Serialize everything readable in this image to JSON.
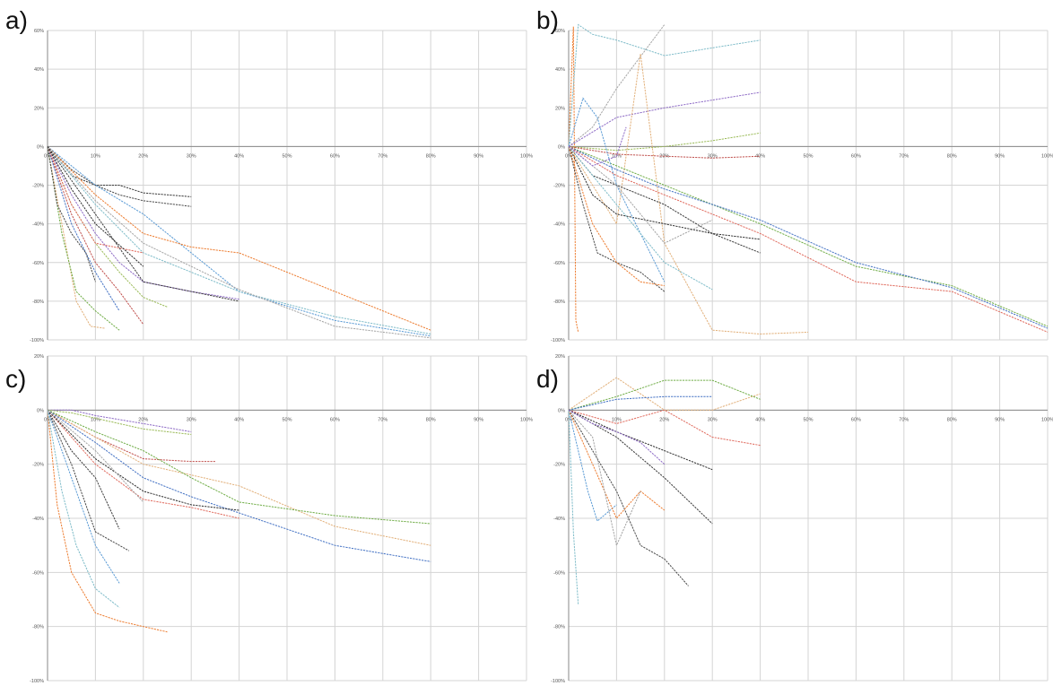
{
  "colors": [
    "#3a3a3a",
    "#4a4a4a",
    "#5b9bd5",
    "#ed7d31",
    "#7fbcc9",
    "#a5a5a5",
    "#8e6bc6",
    "#9bbb59",
    "#c0504d",
    "#e2b07a",
    "#70ad47",
    "#4472c4",
    "#e06b5e",
    "#2f2f2f"
  ],
  "chart_data": [
    {
      "type": "line",
      "label": "a)",
      "xlim": [
        0,
        100
      ],
      "ylim": [
        -100,
        60
      ],
      "xticks": [
        "0%",
        "10%",
        "20%",
        "30%",
        "40%",
        "50%",
        "60%",
        "70%",
        "80%",
        "90%",
        "100%"
      ],
      "yticks": [
        "60%",
        "40%",
        "20%",
        "0%",
        "-20%",
        "-40%",
        "-60%",
        "-80%",
        "-100%"
      ],
      "yticks_values": [
        60,
        40,
        20,
        0,
        -20,
        -40,
        -60,
        -80,
        -100
      ],
      "series": [
        {
          "x": [
            0,
            5,
            10,
            15,
            20,
            30
          ],
          "y": [
            0,
            -15,
            -20,
            -20,
            -24,
            -26
          ]
        },
        {
          "x": [
            0,
            5,
            10,
            15,
            20,
            30
          ],
          "y": [
            0,
            -12,
            -20,
            -25,
            -28,
            -31
          ]
        },
        {
          "x": [
            0,
            10,
            20,
            30,
            40,
            60,
            80
          ],
          "y": [
            0,
            -20,
            -35,
            -55,
            -75,
            -90,
            -98
          ]
        },
        {
          "x": [
            0,
            10,
            20,
            30,
            40,
            60,
            80
          ],
          "y": [
            0,
            -25,
            -45,
            -52,
            -55,
            -75,
            -95
          ]
        },
        {
          "x": [
            0,
            10,
            20,
            30,
            40,
            60,
            80
          ],
          "y": [
            0,
            -30,
            -55,
            -65,
            -75,
            -88,
            -97
          ]
        },
        {
          "x": [
            0,
            10,
            20,
            30,
            40,
            60,
            80
          ],
          "y": [
            0,
            -28,
            -50,
            -62,
            -74,
            -93,
            -99
          ]
        },
        {
          "x": [
            0,
            5,
            10,
            15,
            20,
            30,
            40
          ],
          "y": [
            0,
            -25,
            -45,
            -60,
            -70,
            -75,
            -79
          ]
        },
        {
          "x": [
            0,
            5,
            10,
            15,
            20,
            25
          ],
          "y": [
            0,
            -30,
            -50,
            -65,
            -78,
            -83
          ]
        },
        {
          "x": [
            0,
            5,
            10,
            15,
            20
          ],
          "y": [
            0,
            -35,
            -60,
            -75,
            -92
          ]
        },
        {
          "x": [
            0,
            3,
            6,
            9,
            12
          ],
          "y": [
            0,
            -40,
            -80,
            -93,
            -94
          ]
        },
        {
          "x": [
            0,
            3,
            6,
            10,
            15
          ],
          "y": [
            0,
            -45,
            -75,
            -85,
            -95
          ]
        },
        {
          "x": [
            0,
            5,
            10,
            15
          ],
          "y": [
            0,
            -40,
            -65,
            -85
          ]
        },
        {
          "x": [
            0,
            5,
            10,
            20
          ],
          "y": [
            0,
            -30,
            -50,
            -55
          ]
        },
        {
          "x": [
            0,
            5,
            10,
            20
          ],
          "y": [
            0,
            -22,
            -40,
            -62
          ]
        },
        {
          "x": [
            0,
            10,
            20,
            40
          ],
          "y": [
            0,
            -35,
            -70,
            -80
          ]
        },
        {
          "x": [
            0,
            2,
            5,
            8,
            10
          ],
          "y": [
            0,
            -30,
            -45,
            -55,
            -70
          ]
        }
      ]
    },
    {
      "type": "line",
      "label": "b)",
      "xlim": [
        0,
        100
      ],
      "ylim": [
        -100,
        60
      ],
      "xticks": [
        "0%",
        "10%",
        "20%",
        "30%",
        "40%",
        "50%",
        "60%",
        "70%",
        "80%",
        "90%",
        "100%"
      ],
      "yticks": [
        "60%",
        "40%",
        "20%",
        "0%",
        "-20%",
        "-40%",
        "-60%",
        "-80%",
        "-100%"
      ],
      "yticks_values": [
        60,
        40,
        20,
        0,
        -20,
        -40,
        -60,
        -80,
        -100
      ],
      "series": [
        {
          "x": [
            0,
            1,
            1.5,
            2
          ],
          "y": [
            0,
            62,
            -90,
            -96
          ]
        },
        {
          "x": [
            0,
            2,
            5,
            10,
            20,
            40
          ],
          "y": [
            0,
            63,
            58,
            55,
            47,
            55
          ]
        },
        {
          "x": [
            0,
            5,
            10,
            20
          ],
          "y": [
            0,
            10,
            30,
            63
          ]
        },
        {
          "x": [
            0,
            10,
            20,
            30,
            40
          ],
          "y": [
            0,
            15,
            20,
            24,
            28
          ]
        },
        {
          "x": [
            0,
            10,
            20,
            30,
            40
          ],
          "y": [
            0,
            -2,
            0,
            3,
            7
          ]
        },
        {
          "x": [
            0,
            10,
            20,
            30,
            40
          ],
          "y": [
            0,
            -4,
            -5,
            -6,
            -5
          ]
        },
        {
          "x": [
            0,
            5,
            10,
            15,
            20,
            30,
            40,
            50
          ],
          "y": [
            0,
            -20,
            -40,
            48,
            -50,
            -95,
            -97,
            -96
          ]
        },
        {
          "x": [
            0,
            10,
            20,
            40,
            60,
            80,
            100
          ],
          "y": [
            0,
            -10,
            -20,
            -40,
            -62,
            -72,
            -93
          ]
        },
        {
          "x": [
            0,
            10,
            20,
            40,
            60,
            80,
            100
          ],
          "y": [
            0,
            -12,
            -22,
            -38,
            -60,
            -73,
            -94
          ]
        },
        {
          "x": [
            0,
            10,
            20,
            40,
            60,
            80,
            100
          ],
          "y": [
            0,
            -15,
            -25,
            -45,
            -70,
            -75,
            -96
          ]
        },
        {
          "x": [
            0,
            5,
            10,
            20,
            30,
            40
          ],
          "y": [
            0,
            -25,
            -35,
            -40,
            -45,
            -48
          ]
        },
        {
          "x": [
            0,
            5,
            10,
            20,
            30,
            40
          ],
          "y": [
            0,
            -15,
            -20,
            -30,
            -45,
            -55
          ]
        },
        {
          "x": [
            0,
            3,
            6,
            10,
            15,
            20
          ],
          "y": [
            0,
            -30,
            -55,
            -60,
            -65,
            -75
          ]
        },
        {
          "x": [
            0,
            3,
            6,
            10,
            15,
            20
          ],
          "y": [
            0,
            25,
            15,
            -20,
            -45,
            -70
          ]
        },
        {
          "x": [
            0,
            5,
            10,
            15,
            20
          ],
          "y": [
            0,
            -40,
            -60,
            -70,
            -72
          ]
        },
        {
          "x": [
            0,
            10,
            20,
            30
          ],
          "y": [
            0,
            -30,
            -60,
            -74
          ]
        },
        {
          "x": [
            0,
            10,
            20,
            30
          ],
          "y": [
            0,
            -20,
            -50,
            -38
          ]
        },
        {
          "x": [
            0,
            5,
            10,
            12
          ],
          "y": [
            0,
            -10,
            -5,
            10
          ]
        }
      ]
    },
    {
      "type": "line",
      "label": "c)",
      "xlim": [
        0,
        100
      ],
      "ylim": [
        -100,
        20
      ],
      "xticks": [
        "0%",
        "10%",
        "20%",
        "30%",
        "40%",
        "50%",
        "60%",
        "70%",
        "80%",
        "90%",
        "100%"
      ],
      "yticks": [
        "20%",
        "0%",
        "-20%",
        "-40%",
        "-60%",
        "-80%",
        "-100%"
      ],
      "yticks_values": [
        20,
        0,
        -20,
        -40,
        -60,
        -80,
        -100
      ],
      "series": [
        {
          "x": [
            0,
            5,
            10,
            20,
            30
          ],
          "y": [
            0,
            0,
            -2,
            -5,
            -8
          ]
        },
        {
          "x": [
            0,
            5,
            10,
            20,
            30
          ],
          "y": [
            0,
            -1,
            -3,
            -7,
            -9
          ]
        },
        {
          "x": [
            0,
            10,
            20,
            30,
            35
          ],
          "y": [
            0,
            -10,
            -18,
            -19,
            -19
          ]
        },
        {
          "x": [
            0,
            10,
            20,
            30,
            40,
            60,
            80
          ],
          "y": [
            0,
            -10,
            -20,
            -24,
            -28,
            -43,
            -50
          ]
        },
        {
          "x": [
            0,
            10,
            20,
            30,
            40,
            60,
            80
          ],
          "y": [
            0,
            -8,
            -15,
            -25,
            -34,
            -39,
            -42
          ]
        },
        {
          "x": [
            0,
            10,
            20,
            30,
            40,
            60,
            80
          ],
          "y": [
            0,
            -12,
            -25,
            -32,
            -38,
            -50,
            -56
          ]
        },
        {
          "x": [
            0,
            10,
            20,
            30,
            40
          ],
          "y": [
            0,
            -20,
            -33,
            -36,
            -40
          ]
        },
        {
          "x": [
            0,
            10,
            20,
            30,
            40
          ],
          "y": [
            0,
            -18,
            -30,
            -35,
            -37
          ]
        },
        {
          "x": [
            0,
            5,
            10,
            15
          ],
          "y": [
            0,
            -15,
            -25,
            -44
          ]
        },
        {
          "x": [
            0,
            5,
            10,
            17
          ],
          "y": [
            0,
            -20,
            -45,
            -52
          ]
        },
        {
          "x": [
            0,
            5,
            10,
            15
          ],
          "y": [
            0,
            -25,
            -50,
            -64
          ]
        },
        {
          "x": [
            0,
            2,
            5,
            10,
            15,
            20,
            25
          ],
          "y": [
            0,
            -35,
            -60,
            -75,
            -78,
            -80,
            -82
          ]
        },
        {
          "x": [
            0,
            3,
            6,
            10,
            15
          ],
          "y": [
            0,
            -30,
            -50,
            -66,
            -73
          ]
        },
        {
          "x": [
            0,
            10,
            20
          ],
          "y": [
            0,
            -15,
            -34
          ]
        }
      ]
    },
    {
      "type": "line",
      "label": "d)",
      "xlim": [
        0,
        100
      ],
      "ylim": [
        -100,
        20
      ],
      "xticks": [
        "0%",
        "10%",
        "20%",
        "30%",
        "40%",
        "50%",
        "60%",
        "70%",
        "80%",
        "90%",
        "100%"
      ],
      "yticks": [
        "20%",
        "0%",
        "-20%",
        "-40%",
        "-60%",
        "-80%",
        "-100%"
      ],
      "yticks_values": [
        20,
        0,
        -20,
        -40,
        -60,
        -80,
        -100
      ],
      "series": [
        {
          "x": [
            0,
            10,
            20,
            30,
            40
          ],
          "y": [
            0,
            12,
            0,
            0,
            6
          ]
        },
        {
          "x": [
            0,
            10,
            20,
            30,
            40
          ],
          "y": [
            0,
            5,
            11,
            11,
            4
          ]
        },
        {
          "x": [
            0,
            10,
            20,
            30
          ],
          "y": [
            0,
            4,
            5,
            5
          ]
        },
        {
          "x": [
            0,
            10,
            20,
            30,
            40
          ],
          "y": [
            0,
            -5,
            0,
            -10,
            -13
          ]
        },
        {
          "x": [
            0,
            10,
            20,
            30
          ],
          "y": [
            0,
            -8,
            -15,
            -22
          ]
        },
        {
          "x": [
            0,
            10,
            20,
            30
          ],
          "y": [
            0,
            -10,
            -25,
            -42
          ]
        },
        {
          "x": [
            0,
            5,
            10,
            15,
            20,
            25
          ],
          "y": [
            0,
            -15,
            -30,
            -50,
            -55,
            -65
          ]
        },
        {
          "x": [
            0,
            2,
            4,
            6,
            8,
            10
          ],
          "y": [
            0,
            -15,
            -30,
            -41,
            -38,
            -35
          ]
        },
        {
          "x": [
            0,
            5,
            10,
            15,
            20
          ],
          "y": [
            0,
            -20,
            -40,
            -30,
            -37
          ]
        },
        {
          "x": [
            0,
            1,
            2
          ],
          "y": [
            0,
            -45,
            -72
          ]
        },
        {
          "x": [
            0,
            5,
            10,
            15
          ],
          "y": [
            0,
            -10,
            -50,
            -30
          ]
        },
        {
          "x": [
            0,
            5,
            10,
            15,
            20
          ],
          "y": [
            0,
            -5,
            -8,
            -12,
            -20
          ]
        }
      ]
    }
  ]
}
